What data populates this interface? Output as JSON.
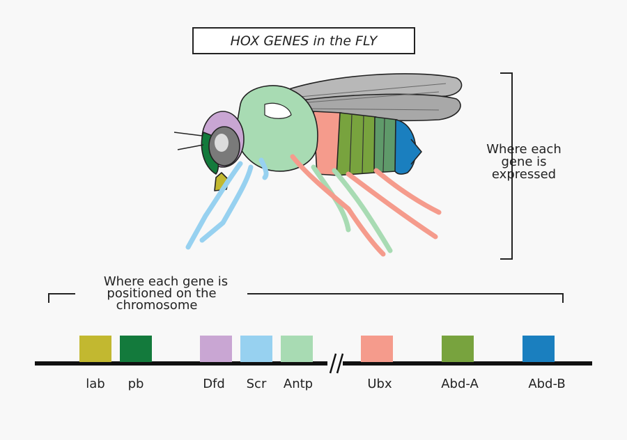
{
  "title": "HOX GENES in the FLY",
  "labels": {
    "expressed": [
      "Where each",
      "gene is",
      "expressed"
    ],
    "positioned": [
      "Where each gene is",
      "positioned on the",
      "chromosome"
    ]
  },
  "genes": [
    {
      "name": "lab",
      "color": "#c2b830"
    },
    {
      "name": "pb",
      "color": "#137a3c"
    },
    {
      "name": "Dfd",
      "color": "#c9a6d3"
    },
    {
      "name": "Scr",
      "color": "#97d1f0"
    },
    {
      "name": "Antp",
      "color": "#a8dbb3"
    },
    {
      "name": "Ubx",
      "color": "#f59b8c"
    },
    {
      "name": "Abd-A",
      "color": "#78a33e"
    },
    {
      "name": "Abd-B",
      "color": "#1a7fbf"
    }
  ]
}
